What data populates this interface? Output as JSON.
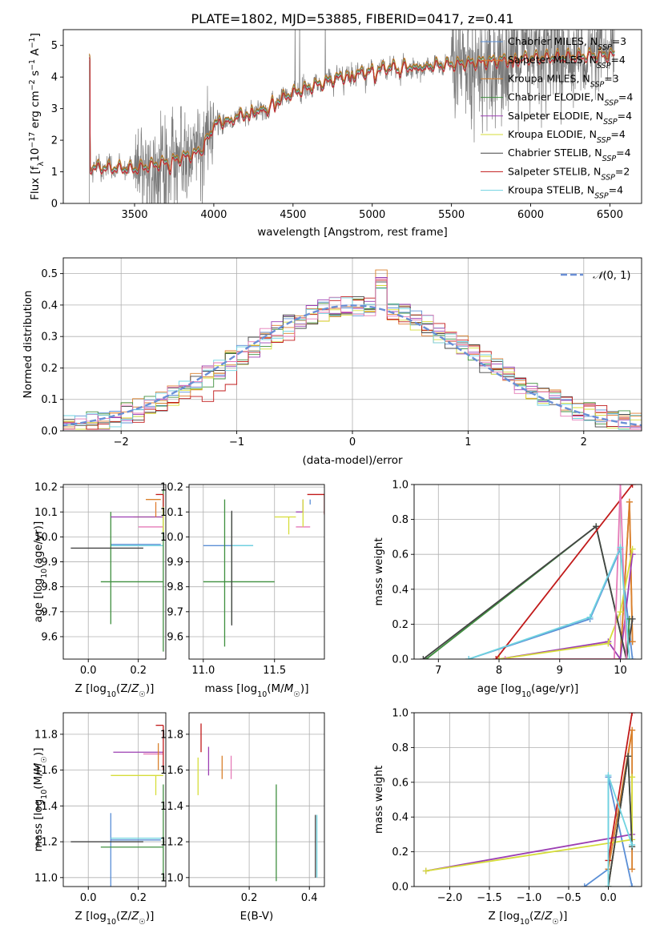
{
  "title": "PLATE=1802, MJD=53885, FIBERID=0417, z=0.41",
  "colors": {
    "Chabrier MILES": "#5b8fd6",
    "Salpeter MILES": "#e07d30",
    "Kroupa MILES": "#d9802c",
    "Chabrier ELODIE": "#3f8f3f",
    "Salpeter ELODIE": "#9c3fb3",
    "Kroupa ELODIE": "#d6dd3a",
    "Chabrier STELIB": "#444444",
    "Salpeter STELIB": "#c11a1a",
    "Kroupa STELIB": "#6fd3e0",
    "pink": "#e57ab7",
    "data": "#7a7a7a",
    "grid": "#b0b0b0",
    "normal": "#6a8fd6"
  },
  "chart_data": [
    {
      "id": "spectrum",
      "type": "line",
      "title": "PLATE=1802, MJD=53885, FIBERID=0417, z=0.41",
      "xlabel": "wavelength [Angstrom, rest frame]",
      "ylabel": "Flux [f_λ 10^-17 erg cm^-2 s^-1 A^-1]",
      "xlim": [
        3050,
        6700
      ],
      "ylim": [
        0,
        5.5
      ],
      "xticks": [
        3500,
        4000,
        4500,
        5000,
        5500,
        6000,
        6500
      ],
      "yticks": [
        0,
        1,
        2,
        3,
        4,
        5
      ],
      "legend_position": "top-right",
      "legend": [
        "Chabrier MILES, N_SSP=3",
        "Salpeter MILES, N_SSP=4",
        "Kroupa MILES, N_SSP=3",
        "Chabrier ELODIE, N_SSP=4",
        "Salpeter ELODIE, N_SSP=4",
        "Kroupa ELODIE, N_SSP=4",
        "Chabrier STELIB, N_SSP=4",
        "Salpeter STELIB, N_SSP=2",
        "Kroupa STELIB, N_SSP=4"
      ],
      "continuum_knots": [
        [
          3220,
          1.15
        ],
        [
          3500,
          1.1
        ],
        [
          3700,
          1.3
        ],
        [
          3900,
          1.6
        ],
        [
          4000,
          2.5
        ],
        [
          4300,
          3.0
        ],
        [
          4500,
          3.5
        ],
        [
          4800,
          4.0
        ],
        [
          5100,
          4.3
        ],
        [
          5500,
          4.4
        ],
        [
          6000,
          4.6
        ],
        [
          6500,
          4.7
        ]
      ],
      "data_range": [
        3215,
        6530
      ]
    },
    {
      "id": "residuals",
      "type": "line",
      "xlabel": "(data-model)/error",
      "ylabel": "Normed distribution",
      "xlim": [
        -2.5,
        2.5
      ],
      "ylim": [
        0,
        0.55
      ],
      "xticks": [
        -2,
        -1,
        0,
        1,
        2
      ],
      "yticks": [
        0.0,
        0.1,
        0.2,
        0.3,
        0.4,
        0.5
      ],
      "legend_position": "top-right",
      "reference": "N(0,1)"
    },
    {
      "id": "age_vs_Z",
      "type": "scatter",
      "xlabel": "Z [log10(Z/Z☉)]",
      "ylabel": "age  [log10(age/yr)]",
      "xlim": [
        -0.1,
        0.31
      ],
      "ylim": [
        9.51,
        10.21
      ],
      "xticks": [
        0.0,
        0.2
      ],
      "yticks": [
        9.6,
        9.7,
        9.8,
        9.9,
        10.0,
        10.1,
        10.2
      ],
      "points": [
        {
          "c": "Chabrier MILES",
          "x": 0.09,
          "xerr": [
            0.0,
            0.2
          ],
          "y": 9.97,
          "yerr": [
            0.0,
            0.0
          ]
        },
        {
          "c": "Kroupa STELIB",
          "x": 0.09,
          "xerr": [
            0.0,
            0.21
          ],
          "y": 9.965,
          "yerr": [
            0.0,
            0.0
          ]
        },
        {
          "c": "Chabrier ELODIE",
          "x": 0.09,
          "xerr": [
            0.0,
            0.0
          ],
          "y": 9.88,
          "yerr": [
            0.23,
            0.22
          ]
        },
        {
          "c": "Chabrier STELIB",
          "x": 0.09,
          "xerr": [
            0.16,
            0.13
          ],
          "y": 9.955,
          "yerr": [
            0.0,
            0.0
          ]
        },
        {
          "c": "Chabrier ELODIE",
          "x": 0.15,
          "xerr": [
            0.1,
            0.15
          ],
          "y": 9.82,
          "yerr": [
            0.0,
            0.0
          ]
        },
        {
          "c": "Chabrier ELODIE",
          "x": 0.3,
          "xerr": [
            0.0,
            0.0
          ],
          "y": 9.82,
          "yerr": [
            0.28,
            0.37
          ]
        },
        {
          "c": "Kroupa ELODIE",
          "x": 0.24,
          "xerr": [
            0.06,
            0.05
          ],
          "y": 10.08,
          "yerr": [
            0.0,
            0.0
          ]
        },
        {
          "c": "Salpeter ELODIE",
          "x": 0.2,
          "xerr": [
            0.11,
            0.1
          ],
          "y": 10.08,
          "yerr": [
            0.0,
            0.0
          ]
        },
        {
          "c": "pink",
          "x": 0.25,
          "xerr": [
            0.05,
            0.05
          ],
          "y": 10.04,
          "yerr": [
            0.0,
            0.0
          ]
        },
        {
          "c": "Salpeter MILES",
          "x": 0.27,
          "xerr": [
            0.0,
            0.0
          ],
          "y": 10.14,
          "yerr": [
            0.06,
            0.0
          ]
        },
        {
          "c": "Kroupa MILES",
          "x": 0.29,
          "xerr": [
            0.06,
            0.0
          ],
          "y": 10.15,
          "yerr": [
            0.0,
            0.0
          ]
        },
        {
          "c": "Salpeter STELIB",
          "x": 0.3,
          "xerr": [
            0.03,
            0.0
          ],
          "y": 10.17,
          "yerr": [
            0.07,
            0.0
          ]
        },
        {
          "c": "Kroupa ELODIE",
          "x": 0.3,
          "xerr": [
            0.0,
            0.0
          ],
          "y": 10.08,
          "yerr": [
            0.06,
            0.04
          ]
        }
      ]
    },
    {
      "id": "age_vs_mass",
      "type": "scatter",
      "xlabel": "mass [log10(M/M☉)]",
      "ylabel": "",
      "xlim": [
        10.9,
        11.85
      ],
      "ylim": [
        9.51,
        10.21
      ],
      "xticks": [
        11.0,
        11.5
      ],
      "yticks": [
        9.6,
        9.7,
        9.8,
        9.9,
        10.0,
        10.1,
        10.2
      ],
      "points": [
        {
          "c": "Chabrier MILES",
          "x": 11.2,
          "xerr": [
            0.2,
            0.15
          ],
          "y": 9.965,
          "yerr": [
            0.0,
            0.0
          ]
        },
        {
          "c": "Kroupa STELIB",
          "x": 11.2,
          "xerr": [
            0.0,
            0.15
          ],
          "y": 9.965,
          "yerr": [
            0.0,
            0.0
          ]
        },
        {
          "c": "Chabrier ELODIE",
          "x": 11.2,
          "xerr": [
            0.2,
            0.3
          ],
          "y": 9.82,
          "yerr": [
            0.17,
            0.28
          ]
        },
        {
          "c": "Chabrier STELIB",
          "x": 11.2,
          "xerr": [
            0.0,
            0.0
          ],
          "y": 9.955,
          "yerr": [
            0.31,
            0.15
          ]
        },
        {
          "c": "Chabrier ELODIE",
          "x": 11.15,
          "xerr": [
            0.0,
            0.0
          ],
          "y": 9.85,
          "yerr": [
            0.29,
            0.3
          ]
        },
        {
          "c": "Kroupa ELODIE",
          "x": 11.6,
          "xerr": [
            0.1,
            0.05
          ],
          "y": 10.08,
          "yerr": [
            0.07,
            0.0
          ]
        },
        {
          "c": "Salpeter ELODIE",
          "x": 11.7,
          "xerr": [
            0.05,
            0.0
          ],
          "y": 10.1,
          "yerr": [
            0.0,
            0.05
          ]
        },
        {
          "c": "pink",
          "x": 11.7,
          "xerr": [
            0.05,
            0.05
          ],
          "y": 10.04,
          "yerr": [
            0.0,
            0.0
          ]
        },
        {
          "c": "Salpeter MILES",
          "x": 11.65,
          "xerr": [
            0.0,
            0.0
          ],
          "y": 10.15,
          "yerr": [
            0.0,
            0.0
          ]
        },
        {
          "c": "Kroupa MILES",
          "x": 11.65,
          "xerr": [
            0.0,
            0.0
          ],
          "y": 10.15,
          "yerr": [
            0.0,
            0.0
          ]
        },
        {
          "c": "Salpeter STELIB",
          "x": 11.85,
          "xerr": [
            0.12,
            0.0
          ],
          "y": 10.17,
          "yerr": [
            0.08,
            0.0
          ]
        },
        {
          "c": "Kroupa ELODIE",
          "x": 11.7,
          "xerr": [
            0.0,
            0.0
          ],
          "y": 10.1,
          "yerr": [
            0.06,
            0.05
          ]
        },
        {
          "c": "Chabrier MILES",
          "x": 11.75,
          "xerr": [
            0.0,
            0.0
          ],
          "y": 10.15,
          "yerr": [
            0.02,
            0.0
          ]
        }
      ]
    },
    {
      "id": "weight_vs_age",
      "type": "line",
      "xlabel": "age  [log10(age/yr)]",
      "ylabel": "mass weight",
      "xlim": [
        6.6,
        10.35
      ],
      "ylim": [
        0,
        1
      ],
      "xticks": [
        7,
        8,
        9,
        10
      ],
      "yticks": [
        0.0,
        0.2,
        0.4,
        0.6,
        0.8,
        1.0
      ],
      "series": [
        {
          "c": "Chabrier MILES",
          "x": [
            7.5,
            9.5,
            10.0,
            10.2
          ],
          "y": [
            0.0,
            0.23,
            0.63,
            0.0
          ]
        },
        {
          "c": "Salpeter MILES",
          "x": [
            8.0,
            10.0,
            10.15,
            10.2
          ],
          "y": [
            0.0,
            0.0,
            0.9,
            0.1
          ]
        },
        {
          "c": "Kroupa MILES",
          "x": [
            8.0,
            10.0,
            10.15,
            10.2
          ],
          "y": [
            0.0,
            0.0,
            0.9,
            0.1
          ]
        },
        {
          "c": "Chabrier ELODIE",
          "x": [
            6.8,
            9.6,
            10.1,
            10.15
          ],
          "y": [
            0.0,
            0.76,
            0.0,
            0.23
          ]
        },
        {
          "c": "Salpeter ELODIE",
          "x": [
            8.0,
            9.8,
            10.0,
            10.2
          ],
          "y": [
            0.0,
            0.1,
            0.0,
            0.6
          ]
        },
        {
          "c": "Kroupa ELODIE",
          "x": [
            8.0,
            9.8,
            10.0,
            10.2
          ],
          "y": [
            0.0,
            0.09,
            0.27,
            0.63
          ]
        },
        {
          "c": "Chabrier STELIB",
          "x": [
            6.75,
            9.6,
            10.1,
            10.2
          ],
          "y": [
            0.0,
            0.76,
            0.0,
            0.23
          ]
        },
        {
          "c": "Salpeter STELIB",
          "x": [
            7.95,
            10.2
          ],
          "y": [
            0.0,
            1.0
          ]
        },
        {
          "c": "pink",
          "x": [
            8.1,
            9.9,
            10.0,
            10.1
          ],
          "y": [
            0.0,
            0.0,
            1.0,
            0.0
          ]
        },
        {
          "c": "Kroupa STELIB",
          "x": [
            7.5,
            9.5,
            10.0,
            10.15
          ],
          "y": [
            0.0,
            0.24,
            0.64,
            0.0
          ]
        }
      ]
    },
    {
      "id": "mass_vs_Z",
      "type": "scatter",
      "xlabel": "Z [log10(Z/Z☉)]",
      "ylabel": "mass [log10(M/M☉)]",
      "xlim": [
        -0.1,
        0.31
      ],
      "ylim": [
        10.95,
        11.92
      ],
      "xticks": [
        0.0,
        0.2
      ],
      "yticks": [
        11.0,
        11.2,
        11.4,
        11.6,
        11.8
      ],
      "points": [
        {
          "c": "Chabrier MILES",
          "x": 0.09,
          "xerr": [
            0.0,
            0.2
          ],
          "y": 11.21,
          "yerr": [
            0.26,
            0.15
          ]
        },
        {
          "c": "Kroupa STELIB",
          "x": 0.09,
          "xerr": [
            0.0,
            0.21
          ],
          "y": 11.22,
          "yerr": [
            0.0,
            0.0
          ]
        },
        {
          "c": "Chabrier STELIB",
          "x": 0.09,
          "xerr": [
            0.16,
            0.13
          ],
          "y": 11.2,
          "yerr": [
            0.0,
            0.0
          ]
        },
        {
          "c": "Chabrier ELODIE",
          "x": 0.15,
          "xerr": [
            0.1,
            0.15
          ],
          "y": 11.17,
          "yerr": [
            0.0,
            0.0
          ]
        },
        {
          "c": "Chabrier ELODIE",
          "x": 0.3,
          "xerr": [
            0.0,
            0.0
          ],
          "y": 11.2,
          "yerr": [
            0.22,
            0.32
          ]
        },
        {
          "c": "Kroupa ELODIE",
          "x": 0.2,
          "xerr": [
            0.11,
            0.1
          ],
          "y": 11.57,
          "yerr": [
            0.0,
            0.0
          ]
        },
        {
          "c": "Salpeter ELODIE",
          "x": 0.2,
          "xerr": [
            0.1,
            0.1
          ],
          "y": 11.7,
          "yerr": [
            0.0,
            0.0
          ]
        },
        {
          "c": "pink",
          "x": 0.27,
          "xerr": [
            0.05,
            0.03
          ],
          "y": 11.69,
          "yerr": [
            0.0,
            0.0
          ]
        },
        {
          "c": "Kroupa MILES",
          "x": 0.28,
          "xerr": [
            0.0,
            0.0
          ],
          "y": 11.7,
          "yerr": [
            0.1,
            0.05
          ]
        },
        {
          "c": "Salpeter STELIB",
          "x": 0.3,
          "xerr": [
            0.03,
            0.0
          ],
          "y": 11.85,
          "yerr": [
            0.0,
            0.0
          ]
        },
        {
          "c": "Salpeter STELIB",
          "x": 0.3,
          "xerr": [
            0.0,
            0.0
          ],
          "y": 11.7,
          "yerr": [
            0.1,
            0.15
          ]
        },
        {
          "c": "Kroupa ELODIE",
          "x": 0.27,
          "xerr": [
            0.0,
            0.0
          ],
          "y": 11.57,
          "yerr": [
            0.11,
            0.0
          ]
        }
      ]
    },
    {
      "id": "mass_vs_ebv",
      "type": "scatter",
      "xlabel": "E(B-V)",
      "ylabel": "",
      "xlim": [
        0.0,
        0.45
      ],
      "ylim": [
        10.95,
        11.92
      ],
      "xticks": [
        0.2,
        0.4
      ],
      "yticks": [
        11.0,
        11.2,
        11.4,
        11.6,
        11.8
      ],
      "points": [
        {
          "c": "Kroupa ELODIE",
          "x": 0.03,
          "xerr": [
            0.0,
            0.0
          ],
          "y": 11.57,
          "yerr": [
            0.11,
            0.1
          ]
        },
        {
          "c": "Salpeter STELIB",
          "x": 0.04,
          "xerr": [
            0.0,
            0.0
          ],
          "y": 11.78,
          "yerr": [
            0.08,
            0.08
          ]
        },
        {
          "c": "Salpeter ELODIE",
          "x": 0.065,
          "xerr": [
            0.0,
            0.0
          ],
          "y": 11.65,
          "yerr": [
            0.08,
            0.08
          ]
        },
        {
          "c": "Kroupa MILES",
          "x": 0.11,
          "xerr": [
            0.0,
            0.0
          ],
          "y": 11.6,
          "yerr": [
            0.05,
            0.08
          ]
        },
        {
          "c": "pink",
          "x": 0.14,
          "xerr": [
            0.0,
            0.0
          ],
          "y": 11.6,
          "yerr": [
            0.05,
            0.08
          ]
        },
        {
          "c": "Chabrier ELODIE",
          "x": 0.29,
          "xerr": [
            0.0,
            0.0
          ],
          "y": 11.2,
          "yerr": [
            0.22,
            0.32
          ]
        },
        {
          "c": "Chabrier STELIB",
          "x": 0.42,
          "xerr": [
            0.0,
            0.0
          ],
          "y": 11.2,
          "yerr": [
            0.2,
            0.15
          ]
        },
        {
          "c": "Kroupa STELIB",
          "x": 0.425,
          "xerr": [
            0.0,
            0.0
          ],
          "y": 11.2,
          "yerr": [
            0.2,
            0.15
          ]
        }
      ]
    },
    {
      "id": "weight_vs_Z",
      "type": "line",
      "xlabel": "Z [log10(Z/Z☉)]",
      "ylabel": "mass weight",
      "xlim": [
        -2.45,
        0.42
      ],
      "ylim": [
        0,
        1
      ],
      "xticks": [
        -2.0,
        -1.5,
        -1.0,
        -0.5,
        0.0,
        0.5
      ],
      "yticks": [
        0.0,
        0.2,
        0.4,
        0.6,
        0.8,
        1.0
      ],
      "series": [
        {
          "c": "Chabrier MILES",
          "x": [
            -0.3,
            0.0,
            0.0,
            0.3
          ],
          "y": [
            0.0,
            0.1,
            0.63,
            0.0
          ]
        },
        {
          "c": "Salpeter MILES",
          "x": [
            0.0,
            0.3
          ],
          "y": [
            0.0,
            0.9
          ]
        },
        {
          "c": "Kroupa MILES",
          "x": [
            0.0,
            0.3,
            0.3
          ],
          "y": [
            0.1,
            0.9,
            0.1
          ]
        },
        {
          "c": "Chabrier ELODIE",
          "x": [
            0.0,
            0.25,
            0.3
          ],
          "y": [
            0.0,
            0.75,
            0.23
          ]
        },
        {
          "c": "Salpeter ELODIE",
          "x": [
            -2.3,
            0.3
          ],
          "y": [
            0.09,
            0.3
          ]
        },
        {
          "c": "Kroupa ELODIE",
          "x": [
            -2.3,
            0.3,
            0.3
          ],
          "y": [
            0.09,
            0.27,
            0.63
          ]
        },
        {
          "c": "Chabrier STELIB",
          "x": [
            0.0,
            0.25,
            0.3
          ],
          "y": [
            0.0,
            0.75,
            0.23
          ]
        },
        {
          "c": "Salpeter STELIB",
          "x": [
            0.0,
            0.3
          ],
          "y": [
            0.15,
            1.0
          ]
        },
        {
          "c": "Kroupa STELIB",
          "x": [
            0.0,
            0.0,
            0.3
          ],
          "y": [
            0.0,
            0.64,
            0.24
          ]
        }
      ]
    }
  ]
}
